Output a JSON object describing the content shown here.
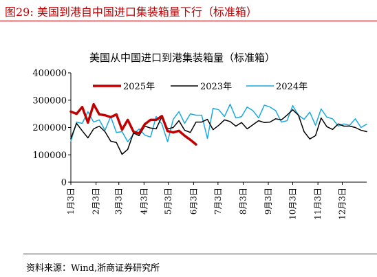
{
  "figure_title": "图29:   美国到港自中国进口集装箱量下行（标准箱）",
  "source": "资料来源：Wind,浙商证券研究所",
  "chart_data": {
    "type": "line",
    "title": "美国从中国进口到港集装箱量（标准箱）",
    "xlabel": "",
    "ylabel": "",
    "ylim": [
      0,
      400000
    ],
    "yticks": [
      0,
      100000,
      200000,
      300000,
      400000
    ],
    "ytick_labels": [
      "0",
      "100000",
      "200000",
      "300000",
      "400000"
    ],
    "x_range": [
      0,
      52
    ],
    "xticks": [
      0,
      4.43,
      8.43,
      12.86,
      17.14,
      21.57,
      25.86,
      30.29,
      34.71,
      39.0,
      43.43,
      47.71
    ],
    "xtick_labels": [
      "1月3日",
      "2月3日",
      "3月3日",
      "4月3日",
      "5月3日",
      "6月3日",
      "7月3日",
      "8月3日",
      "9月3日",
      "10月3日",
      "11月3日",
      "12月3日"
    ],
    "legend_position": "top-center",
    "grid": false,
    "series": [
      {
        "name": "2025年",
        "color": "#c00000",
        "line_width": 3.5,
        "x": [
          0,
          1,
          2,
          3,
          4,
          5,
          6,
          7,
          8,
          9,
          10,
          11,
          12,
          13,
          14,
          15,
          16,
          17,
          18,
          19,
          20,
          21,
          22
        ],
        "values": [
          258000,
          250000,
          275000,
          218000,
          285000,
          248000,
          245000,
          238000,
          248000,
          192000,
          228000,
          185000,
          178000,
          212000,
          228000,
          228000,
          242000,
          187000,
          182000,
          188000,
          170000,
          155000,
          138000
        ]
      },
      {
        "name": "2023年",
        "color": "#000000",
        "line_width": 1.5,
        "x": [
          0,
          1,
          2,
          3,
          4,
          5,
          6,
          7,
          8,
          9,
          10,
          11,
          12,
          13,
          14,
          15,
          16,
          17,
          18,
          19,
          20,
          21,
          22,
          23,
          24,
          25,
          26,
          27,
          28,
          29,
          30,
          31,
          32,
          33,
          34,
          35,
          36,
          37,
          38,
          39,
          40,
          41,
          42,
          43,
          44,
          45,
          46,
          47,
          48,
          49,
          50,
          51,
          52
        ],
        "values": [
          160000,
          215000,
          188000,
          162000,
          195000,
          205000,
          185000,
          150000,
          145000,
          102000,
          120000,
          180000,
          170000,
          205000,
          198000,
          195000,
          240000,
          195000,
          200000,
          225000,
          190000,
          182000,
          220000,
          220000,
          230000,
          192000,
          208000,
          228000,
          222000,
          205000,
          218000,
          195000,
          210000,
          225000,
          218000,
          220000,
          232000,
          228000,
          245000,
          265000,
          245000,
          185000,
          158000,
          170000,
          235000,
          203000,
          193000,
          213000,
          205000,
          205000,
          200000,
          190000,
          185000
        ]
      },
      {
        "name": "2024年",
        "color": "#19a9e0",
        "line_width": 1.5,
        "x": [
          0,
          1,
          2,
          3,
          4,
          5,
          6,
          7,
          8,
          9,
          10,
          11,
          12,
          13,
          14,
          15,
          16,
          17,
          18,
          19,
          20,
          21,
          22,
          23,
          24,
          25,
          26,
          27,
          28,
          29,
          30,
          31,
          32,
          33,
          34,
          35,
          36,
          37,
          38,
          39,
          40,
          41,
          42,
          43,
          44,
          45,
          46,
          47,
          48,
          49,
          50,
          51,
          52
        ],
        "values": [
          150000,
          220000,
          215000,
          258000,
          220000,
          228000,
          190000,
          240000,
          182000,
          185000,
          148000,
          175000,
          195000,
          172000,
          165000,
          240000,
          213000,
          148000,
          230000,
          258000,
          215000,
          250000,
          245000,
          245000,
          160000,
          270000,
          265000,
          240000,
          285000,
          235000,
          240000,
          275000,
          262000,
          235000,
          282000,
          275000,
          262000,
          220000,
          225000,
          280000,
          245000,
          230000,
          256000,
          208000,
          268000,
          238000,
          232000,
          205000,
          213000,
          208000,
          232000,
          200000,
          212000
        ]
      }
    ]
  }
}
